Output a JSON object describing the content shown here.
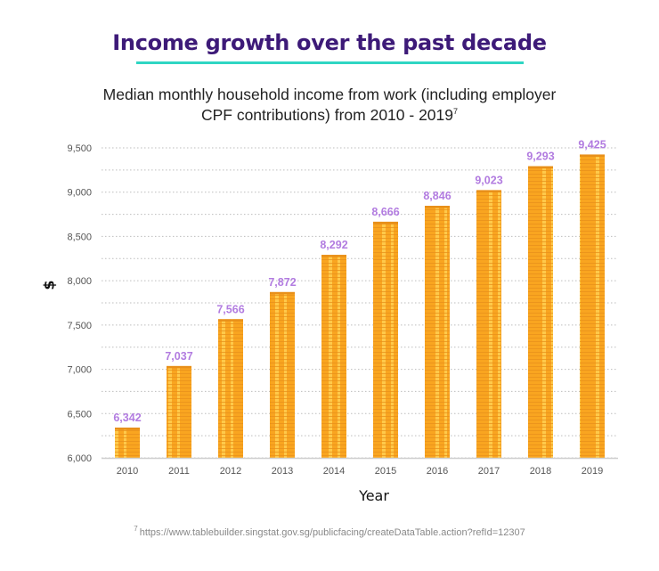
{
  "header": {
    "title": "Income growth over the past decade",
    "subtitle_line1": "Median monthly household income from work (including employer",
    "subtitle_line2": "CPF contributions) from 2010 - 2019",
    "subtitle_footnote_mark": "7"
  },
  "footnote": {
    "mark": "7",
    "text": "https://www.tablebuilder.singstat.gov.sg/publicfacing/createDataTable.action?refId=12307"
  },
  "colors": {
    "title": "#3d1a78",
    "underline": "#2fd6c3",
    "bar": "#f9a520",
    "bar_light": "#ffc94a",
    "data_label": "#b27ce0"
  },
  "chart_data": {
    "type": "bar",
    "title": "Median monthly household income from work (including employer CPF contributions) from 2010 - 2019",
    "xlabel": "Year",
    "ylabel": "$",
    "categories": [
      "2010",
      "2011",
      "2012",
      "2013",
      "2014",
      "2015",
      "2016",
      "2017",
      "2018",
      "2019"
    ],
    "values": [
      6342,
      7037,
      7566,
      7872,
      8292,
      8666,
      8846,
      9023,
      9293,
      9425
    ],
    "value_labels": [
      "6,342",
      "7,037",
      "7,566",
      "7,872",
      "8,292",
      "8,666",
      "8,846",
      "9,023",
      "9,293",
      "9,425"
    ],
    "ylim": [
      6000,
      9500
    ],
    "yticks": [
      6000,
      6500,
      7000,
      7500,
      8000,
      8500,
      9000,
      9500
    ],
    "ytick_labels": [
      "6,000",
      "6,500",
      "7,000",
      "7,500",
      "8,000",
      "8,500",
      "9,000",
      "9,500"
    ],
    "grid": true
  }
}
